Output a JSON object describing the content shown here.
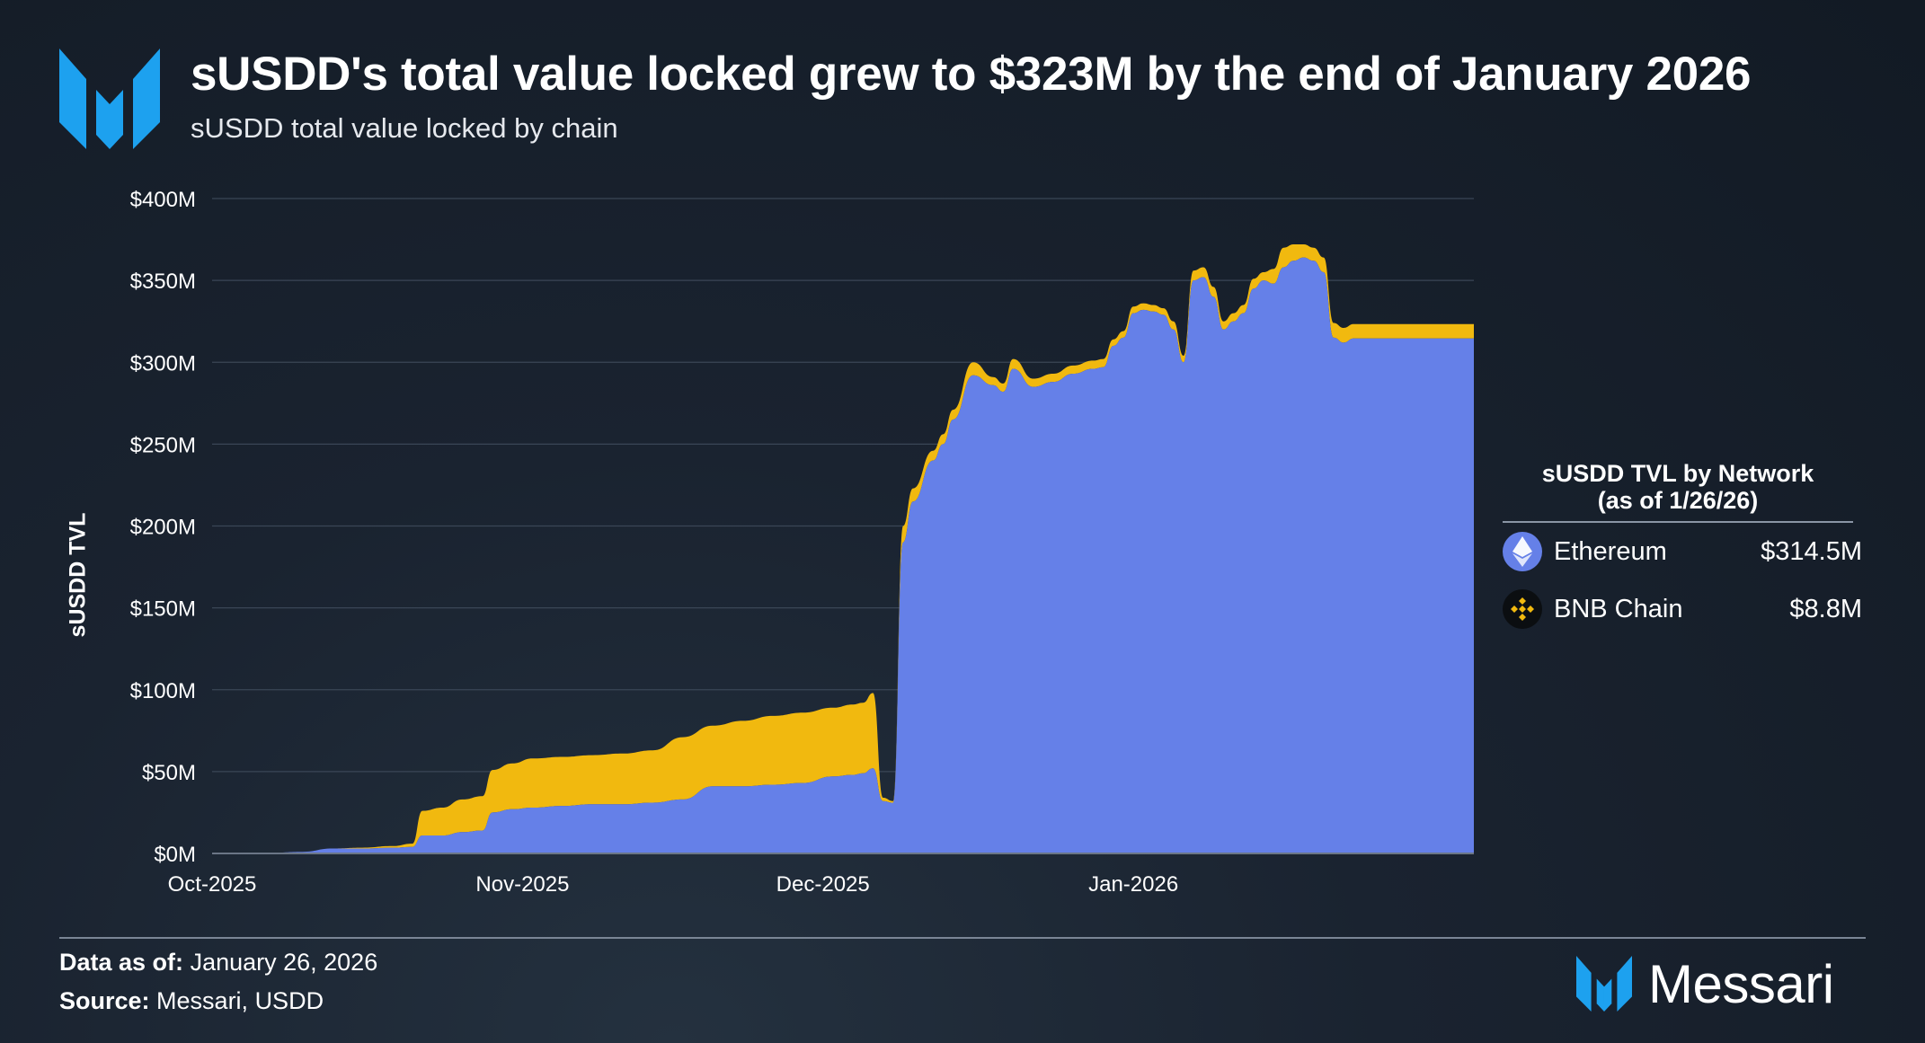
{
  "header": {
    "title": "sUSDD's total value locked grew to $323M by the end of January 2026",
    "subtitle": "sUSDD total value locked by chain"
  },
  "colors": {
    "ethereum": "#6580e8",
    "bnb": "#f1b90f",
    "grid": "#3a4656",
    "accent": "#1da1ef"
  },
  "chart_data": {
    "type": "area",
    "stacked": true,
    "title": "sUSDD's total value locked grew to $323M by the end of January 2026",
    "subtitle": "sUSDD total value locked by chain",
    "ylabel": "sUSDD TVL",
    "xlabel": "",
    "unit": "$M",
    "ylim": [
      0,
      400
    ],
    "y_ticks": [
      0,
      50,
      100,
      150,
      200,
      250,
      300,
      350,
      400
    ],
    "y_tick_labels": [
      "$0M",
      "$50M",
      "$100M",
      "$150M",
      "$200M",
      "$250M",
      "$300M",
      "$350M",
      "$400M"
    ],
    "x_domain_days": [
      0,
      126
    ],
    "x_ticks": [
      {
        "day": 0,
        "label": "Oct-2025"
      },
      {
        "day": 31,
        "label": "Nov-2025"
      },
      {
        "day": 61,
        "label": "Dec-2025"
      },
      {
        "day": 92,
        "label": "Jan-2026"
      }
    ],
    "x_days": [
      0,
      3,
      6,
      9,
      12,
      15,
      18,
      20,
      21,
      23,
      25,
      27,
      28,
      30,
      32,
      35,
      38,
      41,
      44,
      47,
      50,
      53,
      56,
      59,
      62,
      64,
      65,
      66,
      67,
      68,
      69,
      70,
      72,
      73,
      74,
      76,
      78,
      79,
      80,
      82,
      84,
      86,
      88,
      89,
      90,
      91,
      92,
      93,
      94,
      95,
      96,
      97,
      98,
      99,
      100,
      101,
      102,
      103,
      104,
      105,
      106,
      107,
      108,
      109,
      110,
      111,
      112,
      113,
      114,
      115,
      116,
      117,
      118,
      119,
      120,
      121,
      122,
      123,
      124,
      125,
      126
    ],
    "series": [
      {
        "name": "Ethereum",
        "values": [
          0,
          0,
          0.5,
          1,
          3,
          3,
          3.5,
          4,
          11,
          11,
          13,
          14,
          25,
          27,
          28,
          29,
          30,
          30,
          31,
          33,
          41,
          41,
          42,
          43,
          47,
          48,
          49,
          52,
          32,
          31,
          190,
          215,
          240,
          250,
          265,
          292,
          286,
          282,
          296,
          285,
          288,
          293,
          296,
          297,
          310,
          315,
          330,
          332,
          331,
          329,
          320,
          300,
          350,
          352,
          340,
          320,
          325,
          330,
          345,
          350,
          348,
          358,
          362,
          364,
          362,
          355,
          315,
          312,
          314.5,
          314.5,
          314.5,
          314.5,
          314.5,
          314.5,
          314.5,
          314.5,
          314.5,
          314.5,
          314.5,
          314.5,
          314.5
        ]
      },
      {
        "name": "BNB Chain",
        "values": [
          0,
          0,
          0,
          0,
          0,
          0.5,
          1,
          2,
          15,
          17,
          20,
          21,
          26,
          28,
          30,
          30,
          30,
          31,
          32,
          38,
          37,
          40,
          42,
          43,
          42,
          43,
          43,
          46,
          2,
          1,
          10,
          8,
          6,
          6,
          6,
          8,
          5,
          5,
          6,
          5,
          5,
          5,
          5,
          5,
          4,
          4,
          4,
          4,
          4,
          4,
          5,
          4,
          6,
          6,
          6,
          5,
          5,
          5,
          6,
          5,
          9,
          12,
          10,
          8,
          8,
          9,
          9,
          9,
          8.8,
          8.8,
          8.8,
          8.8,
          8.8,
          8.8,
          8.8,
          8.8,
          8.8,
          8.8,
          8.8,
          8.8,
          8.8
        ]
      }
    ],
    "legend": {
      "title_line1": "sUSDD TVL by Network",
      "title_line2": "(as of 1/26/26)",
      "items": [
        {
          "name": "Ethereum",
          "value": "$314.5M"
        },
        {
          "name": "BNB Chain",
          "value": "$8.8M"
        }
      ]
    }
  },
  "footer": {
    "data_as_of_label": "Data as of:",
    "data_as_of_value": "January 26, 2026",
    "source_label": "Source:",
    "source_value": "Messari, USDD",
    "brand": "Messari"
  }
}
